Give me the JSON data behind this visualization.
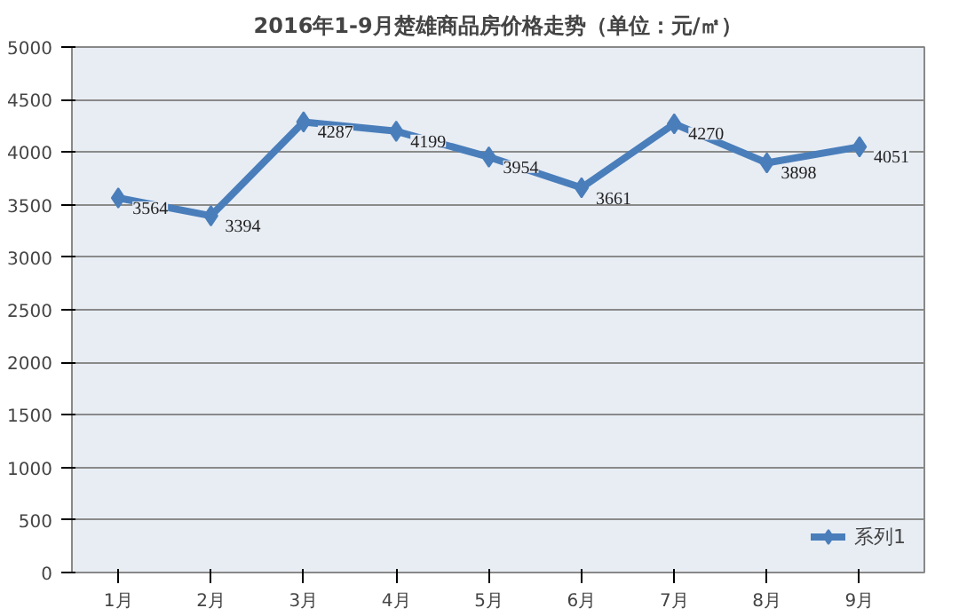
{
  "chart_data": {
    "type": "line",
    "title": "2016年1-9月楚雄商品房价格走势（单位：元/㎡）",
    "categories": [
      "1月",
      "2月",
      "3月",
      "4月",
      "5月",
      "6月",
      "7月",
      "8月",
      "9月"
    ],
    "series": [
      {
        "name": "系列1",
        "color": "#4a7ebb",
        "values": [
          3564,
          3394,
          4287,
          4199,
          3954,
          3661,
          4270,
          3898,
          4051
        ]
      }
    ],
    "ylim": [
      0,
      5000
    ],
    "yticks": [
      0,
      500,
      1000,
      1500,
      2000,
      2500,
      3000,
      3500,
      4000,
      4500,
      5000
    ],
    "grid": "y",
    "legend": "bottom right",
    "marker": "diamond",
    "line_style": "solid",
    "data_labels": true
  }
}
